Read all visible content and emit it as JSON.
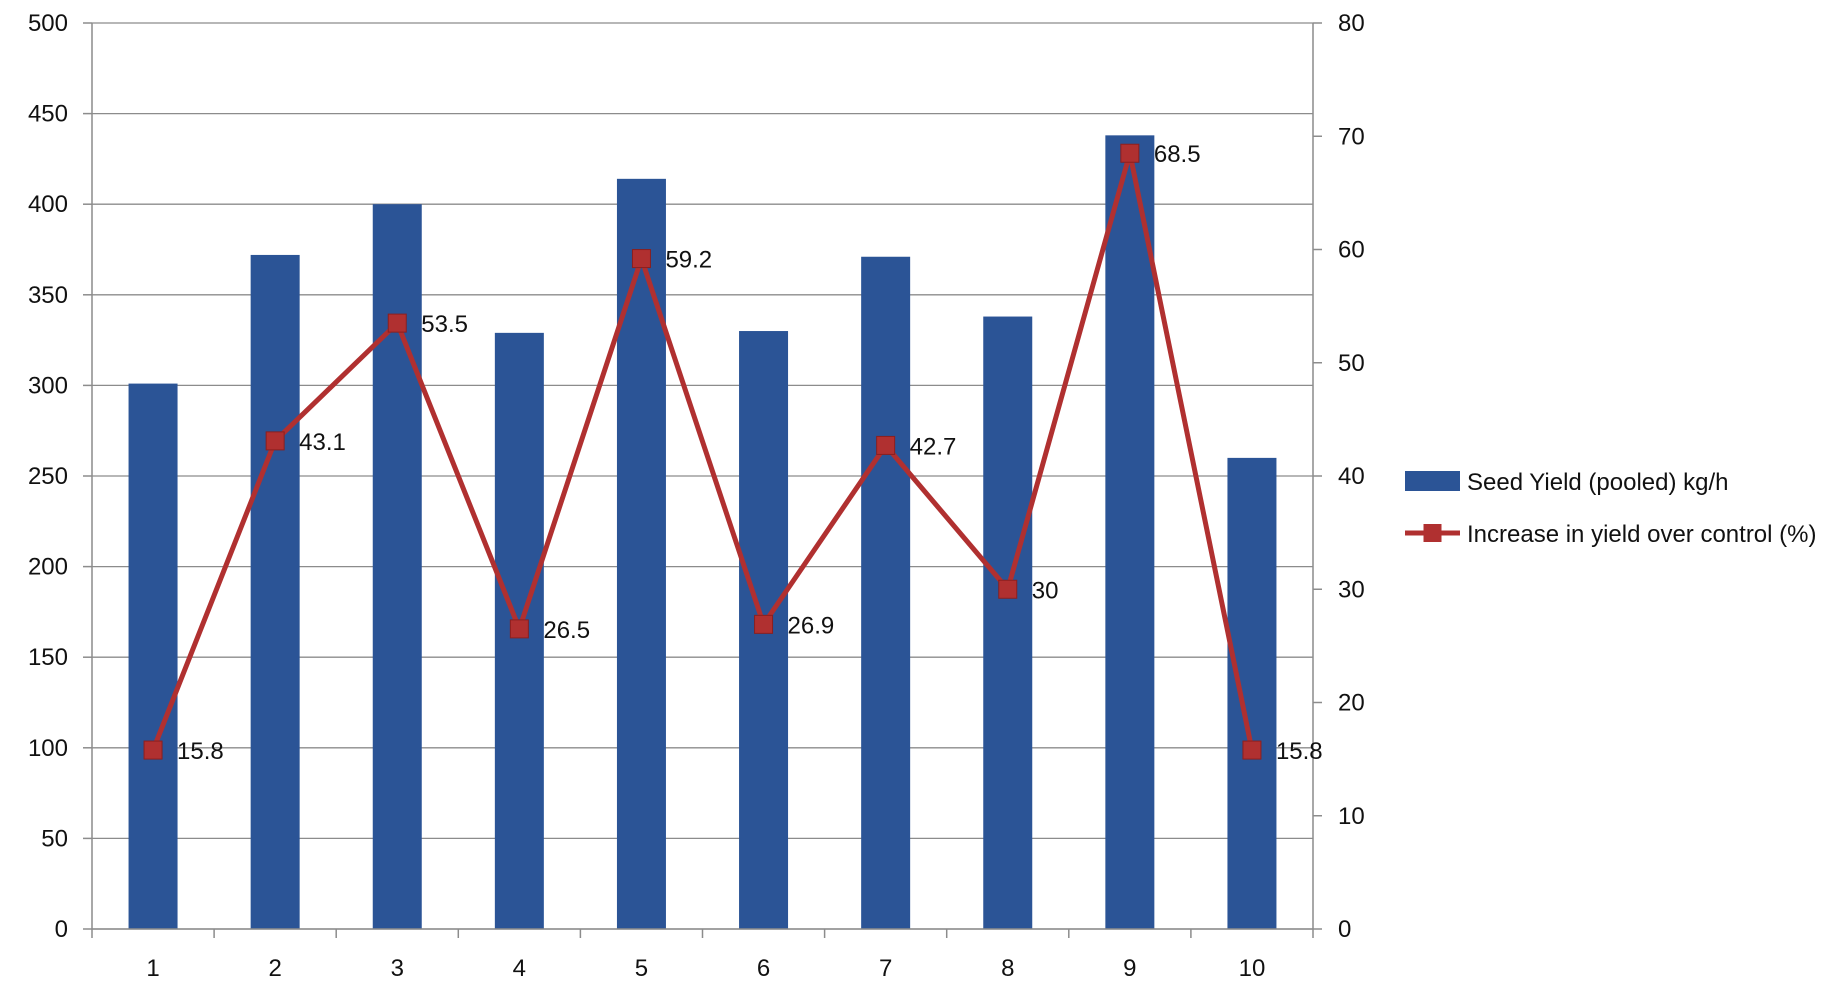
{
  "chart_data": {
    "type": "bar",
    "categories": [
      "1",
      "2",
      "3",
      "4",
      "5",
      "6",
      "7",
      "8",
      "9",
      "10"
    ],
    "series": [
      {
        "name": "Seed Yield (pooled) kg/h",
        "type": "bar",
        "axis": "left",
        "color": "#2B5496",
        "values": [
          301,
          372,
          400,
          329,
          414,
          330,
          371,
          338,
          438,
          260
        ]
      },
      {
        "name": "Increase in yield over control (%)",
        "type": "line",
        "axis": "right",
        "color": "#B03030",
        "marker": "square",
        "values": [
          15.8,
          43.1,
          53.5,
          26.5,
          59.2,
          26.9,
          42.7,
          30,
          68.5,
          15.8
        ],
        "data_labels": [
          "15.8",
          "43.1",
          "53.5",
          "26.5",
          "59.2",
          "26.9",
          "42.7",
          "30",
          "68.5",
          "15.8"
        ]
      }
    ],
    "y_left": {
      "ylim": [
        0,
        500
      ],
      "ticks": [
        "0",
        "50",
        "100",
        "150",
        "200",
        "250",
        "300",
        "350",
        "400",
        "450",
        "500"
      ]
    },
    "y_right": {
      "ylim": [
        0,
        80
      ],
      "ticks": [
        "0",
        "10",
        "20",
        "30",
        "40",
        "50",
        "60",
        "70",
        "80"
      ]
    },
    "title": "",
    "xlabel": "",
    "ylabel": "",
    "grid": true,
    "legend": "right"
  }
}
